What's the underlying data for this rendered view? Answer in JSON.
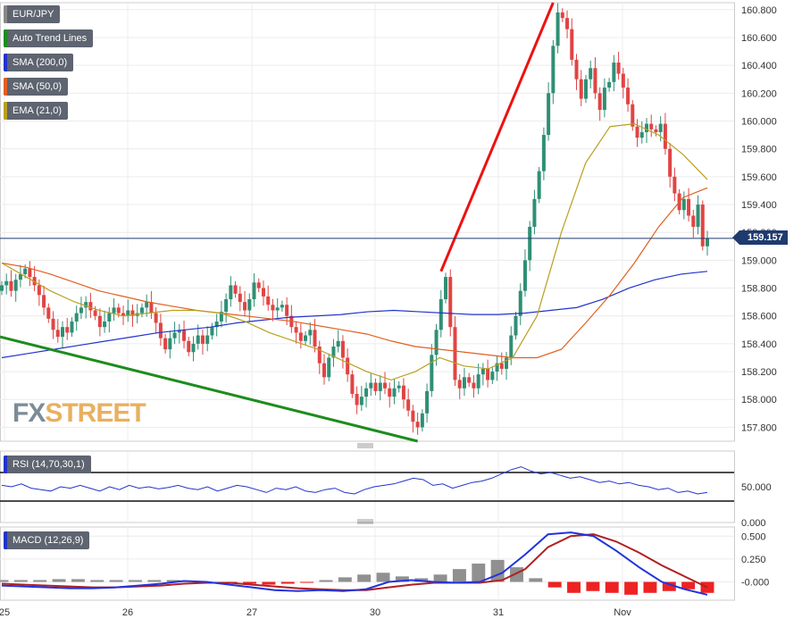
{
  "legends": {
    "main": [
      {
        "label": "EUR/JPY",
        "color": "#888888"
      },
      {
        "label": "Auto Trend Lines",
        "color": "#1e8c1e"
      },
      {
        "label": "SMA (200,0)",
        "color": "#2233cc"
      },
      {
        "label": "SMA (50,0)",
        "color": "#e06020"
      },
      {
        "label": "EMA (21,0)",
        "color": "#b8a020"
      }
    ],
    "rsi": {
      "label": "RSI (14,70,30,1)",
      "color": "#2233cc"
    },
    "macd": {
      "label": "MACD (12,26,9)",
      "color": "#2233cc"
    }
  },
  "price_badge": "159.157",
  "watermark": {
    "fx": "FX",
    "street": "STREET"
  },
  "chart_data": [
    {
      "type": "candlestick",
      "pair": "EUR/JPY",
      "ylim": [
        157.7,
        160.85
      ],
      "yticks": [
        157.8,
        158.0,
        158.2,
        158.4,
        158.6,
        158.8,
        159.0,
        159.2,
        159.4,
        159.6,
        159.8,
        160.0,
        160.2,
        160.4,
        160.6,
        160.8
      ],
      "ytick_labels": [
        "157.800",
        "158.000",
        "158.200",
        "158.400",
        "158.600",
        "158.800",
        "159.000",
        "159.200",
        "159.400",
        "159.600",
        "159.800",
        "160.000",
        "160.200",
        "160.400",
        "160.600",
        "160.800"
      ],
      "x_labels": [
        "25",
        "26",
        "27",
        "30",
        "31",
        "Nov"
      ],
      "last_price": 159.157,
      "close": [
        158.82,
        158.85,
        158.78,
        158.86,
        158.9,
        158.94,
        158.88,
        158.82,
        158.75,
        158.66,
        158.58,
        158.5,
        158.45,
        158.52,
        158.48,
        158.56,
        158.62,
        158.66,
        158.7,
        158.64,
        158.6,
        158.52,
        158.56,
        158.62,
        158.66,
        158.62,
        158.6,
        158.64,
        158.6,
        158.62,
        158.66,
        158.7,
        158.62,
        158.55,
        158.44,
        158.36,
        158.44,
        158.48,
        158.5,
        158.42,
        158.34,
        158.4,
        158.46,
        158.4,
        158.46,
        158.52,
        158.56,
        158.63,
        158.72,
        158.82,
        158.76,
        158.7,
        158.64,
        158.72,
        158.84,
        158.8,
        158.74,
        158.68,
        158.64,
        158.66,
        158.68,
        158.6,
        158.52,
        158.48,
        158.42,
        158.46,
        158.5,
        158.38,
        158.26,
        158.16,
        158.3,
        158.38,
        158.42,
        158.3,
        158.18,
        158.04,
        157.96,
        158.02,
        158.08,
        158.12,
        158.06,
        158.12,
        158.08,
        158.02,
        158.08,
        158.1,
        158.0,
        157.92,
        157.84,
        157.8,
        157.9,
        158.06,
        158.32,
        158.5,
        158.72,
        158.88,
        158.52,
        158.14,
        158.08,
        158.16,
        158.12,
        158.08,
        158.18,
        158.22,
        158.14,
        158.2,
        158.26,
        158.22,
        158.3,
        158.46,
        158.6,
        158.78,
        159.0,
        159.24,
        159.44,
        159.64,
        159.9,
        160.2,
        160.54,
        160.78,
        160.74,
        160.66,
        160.44,
        160.3,
        160.16,
        160.3,
        160.38,
        160.2,
        160.08,
        160.24,
        160.28,
        160.42,
        160.34,
        160.24,
        160.12,
        159.96,
        159.88,
        159.92,
        159.98,
        159.94,
        159.92,
        159.98,
        159.8,
        159.6,
        159.48,
        159.36,
        159.44,
        159.32,
        159.24,
        159.4,
        159.1,
        159.157
      ],
      "series": [
        {
          "name": "SMA (200,0)",
          "color": "#2233cc",
          "values": [
            158.3,
            158.33,
            158.36,
            158.39,
            158.42,
            158.45,
            158.48,
            158.5,
            158.52,
            158.55,
            158.57,
            158.59,
            158.6,
            158.61,
            158.63,
            158.64,
            158.63,
            158.62,
            158.61,
            158.61,
            158.62,
            158.64,
            158.66,
            158.72,
            158.8,
            158.86,
            158.9,
            158.92
          ]
        },
        {
          "name": "SMA (50,0)",
          "color": "#e06020",
          "values": [
            158.98,
            158.95,
            158.9,
            158.84,
            158.78,
            158.74,
            158.7,
            158.67,
            158.64,
            158.62,
            158.6,
            158.58,
            158.56,
            158.53,
            158.5,
            158.47,
            158.42,
            158.38,
            158.36,
            158.34,
            158.32,
            158.3,
            158.3,
            158.36,
            158.55,
            158.75,
            158.98,
            159.24,
            159.45,
            159.52
          ]
        },
        {
          "name": "EMA (21,0)",
          "color": "#b8a020",
          "values": [
            158.98,
            158.88,
            158.78,
            158.7,
            158.64,
            158.6,
            158.62,
            158.64,
            158.64,
            158.62,
            158.56,
            158.48,
            158.42,
            158.36,
            158.28,
            158.2,
            158.14,
            158.2,
            158.3,
            158.24,
            158.22,
            158.3,
            158.6,
            159.2,
            159.7,
            159.96,
            159.98,
            159.9,
            159.76,
            159.58
          ]
        }
      ],
      "trend_lines": [
        {
          "color": "#1e8c1e"
        },
        {
          "color": "#ee1111"
        }
      ]
    },
    {
      "type": "line",
      "name": "RSI (14,70,30,1)",
      "yticks": [
        50.0,
        0.0
      ],
      "ytick_labels": [
        "50.000",
        "0.000"
      ],
      "levels": [
        70,
        30
      ],
      "values": [
        52,
        50,
        54,
        48,
        46,
        44,
        50,
        48,
        52,
        48,
        44,
        50,
        46,
        52,
        48,
        50,
        47,
        49,
        52,
        48,
        46,
        50,
        44,
        48,
        52,
        50,
        46,
        42,
        48,
        46,
        50,
        44,
        42,
        46,
        48,
        42,
        40,
        46,
        50,
        52,
        54,
        58,
        62,
        60,
        52,
        54,
        48,
        52,
        56,
        58,
        62,
        68,
        74,
        78,
        72,
        68,
        70,
        66,
        62,
        64,
        60,
        56,
        58,
        54,
        56,
        52,
        50,
        46,
        48,
        42,
        44,
        40,
        42
      ],
      "ylim": [
        0,
        100
      ]
    },
    {
      "type": "bar+line",
      "name": "MACD (12,26,9)",
      "yticks": [
        0.5,
        0.25,
        0.0
      ],
      "ytick_labels": [
        "0.500",
        "0.250",
        "-0.000"
      ],
      "ylim": [
        -0.2,
        0.6
      ],
      "macd": [
        -0.04,
        -0.05,
        -0.06,
        -0.07,
        -0.07,
        -0.06,
        -0.04,
        -0.02,
        0.01,
        0.0,
        -0.03,
        -0.06,
        -0.09,
        -0.1,
        -0.09,
        -0.1,
        -0.08,
        0.0,
        0.02,
        0.0,
        -0.01,
        0.0,
        0.1,
        0.3,
        0.52,
        0.54,
        0.5,
        0.34,
        0.16,
        0.0,
        -0.08,
        -0.14
      ],
      "signal": [
        -0.02,
        -0.03,
        -0.04,
        -0.05,
        -0.06,
        -0.06,
        -0.05,
        -0.04,
        -0.02,
        -0.01,
        -0.01,
        -0.03,
        -0.05,
        -0.07,
        -0.08,
        -0.09,
        -0.09,
        -0.06,
        -0.03,
        -0.01,
        -0.01,
        -0.01,
        0.02,
        0.14,
        0.38,
        0.5,
        0.52,
        0.44,
        0.32,
        0.18,
        0.06,
        -0.06
      ],
      "histogram": [
        0.02,
        0.02,
        0.02,
        0.03,
        0.03,
        0.02,
        0.02,
        0.02,
        0.02,
        0.02,
        0.01,
        0.0,
        -0.01,
        -0.02,
        -0.03,
        -0.02,
        -0.01,
        0.02,
        0.05,
        0.08,
        0.1,
        0.06,
        0.04,
        0.08,
        0.14,
        0.2,
        0.24,
        0.16,
        0.04,
        -0.06,
        -0.12,
        -0.1,
        -0.12,
        -0.14,
        -0.12,
        -0.1,
        -0.08,
        -0.12
      ]
    }
  ]
}
